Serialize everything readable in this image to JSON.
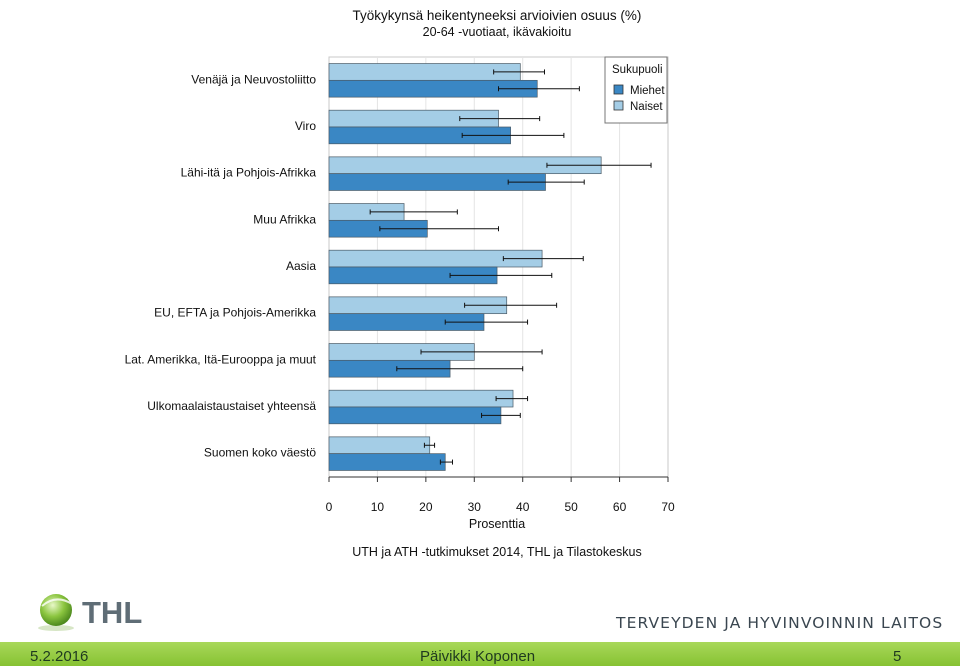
{
  "chart_data": {
    "type": "bar",
    "orientation": "horizontal",
    "title": "Työkykynsä heikentyneeksi arvioivien osuus (%)",
    "subtitle": "20-64 -vuotiaat, ikävakioitu",
    "xlabel": "Prosenttia",
    "ylabel": "",
    "xlim": [
      0,
      70
    ],
    "xticks": [
      "0",
      "10",
      "20",
      "30",
      "40",
      "50",
      "60",
      "70"
    ],
    "grid": true,
    "legend_title": "Sukupuoli",
    "legend_position": "top-right",
    "categories": [
      "Venäjä ja Neuvostoliitto",
      "Viro",
      "Lähi-itä ja Pohjois-Afrikka",
      "Muu Afrikka",
      "Aasia",
      "EU, EFTA ja Pohjois-Amerikka",
      "Lat. Amerikka, Itä-Eurooppa ja muut",
      "Ulkomaalaistaustaiset yhteensä",
      "Suomen koko väestö"
    ],
    "series": [
      {
        "name": "Miehet",
        "color": "#3a87c4",
        "values": [
          43,
          37.5,
          44.7,
          20.3,
          34.7,
          32,
          25,
          35.5,
          24
        ],
        "ci_low": [
          35,
          27.5,
          37,
          10.5,
          25,
          24,
          14,
          31.5,
          23
        ],
        "ci_high": [
          51.7,
          48.5,
          52.7,
          35,
          46,
          41,
          40,
          39.5,
          25.5
        ]
      },
      {
        "name": "Naiset",
        "color": "#a4cde6",
        "values": [
          39.5,
          35,
          56.2,
          15.5,
          44,
          36.7,
          30,
          38,
          20.8
        ],
        "ci_low": [
          34,
          27,
          45,
          8.5,
          36,
          28,
          19,
          34.5,
          19.7
        ],
        "ci_high": [
          44.5,
          43.5,
          66.5,
          26.5,
          52.5,
          47,
          44,
          41,
          21.8
        ]
      }
    ],
    "source_note": "UTH ja ATH -tutkimukset 2014, THL ja Tilastokeskus"
  },
  "branding": {
    "logo_text": "THL",
    "organization": "TERVEYDEN JA HYVINVOINNIN LAITOS",
    "accent_color": "#86c232"
  },
  "footer": {
    "date": "5.2.2016",
    "author": "Päivikki Koponen",
    "page_number": "5"
  }
}
